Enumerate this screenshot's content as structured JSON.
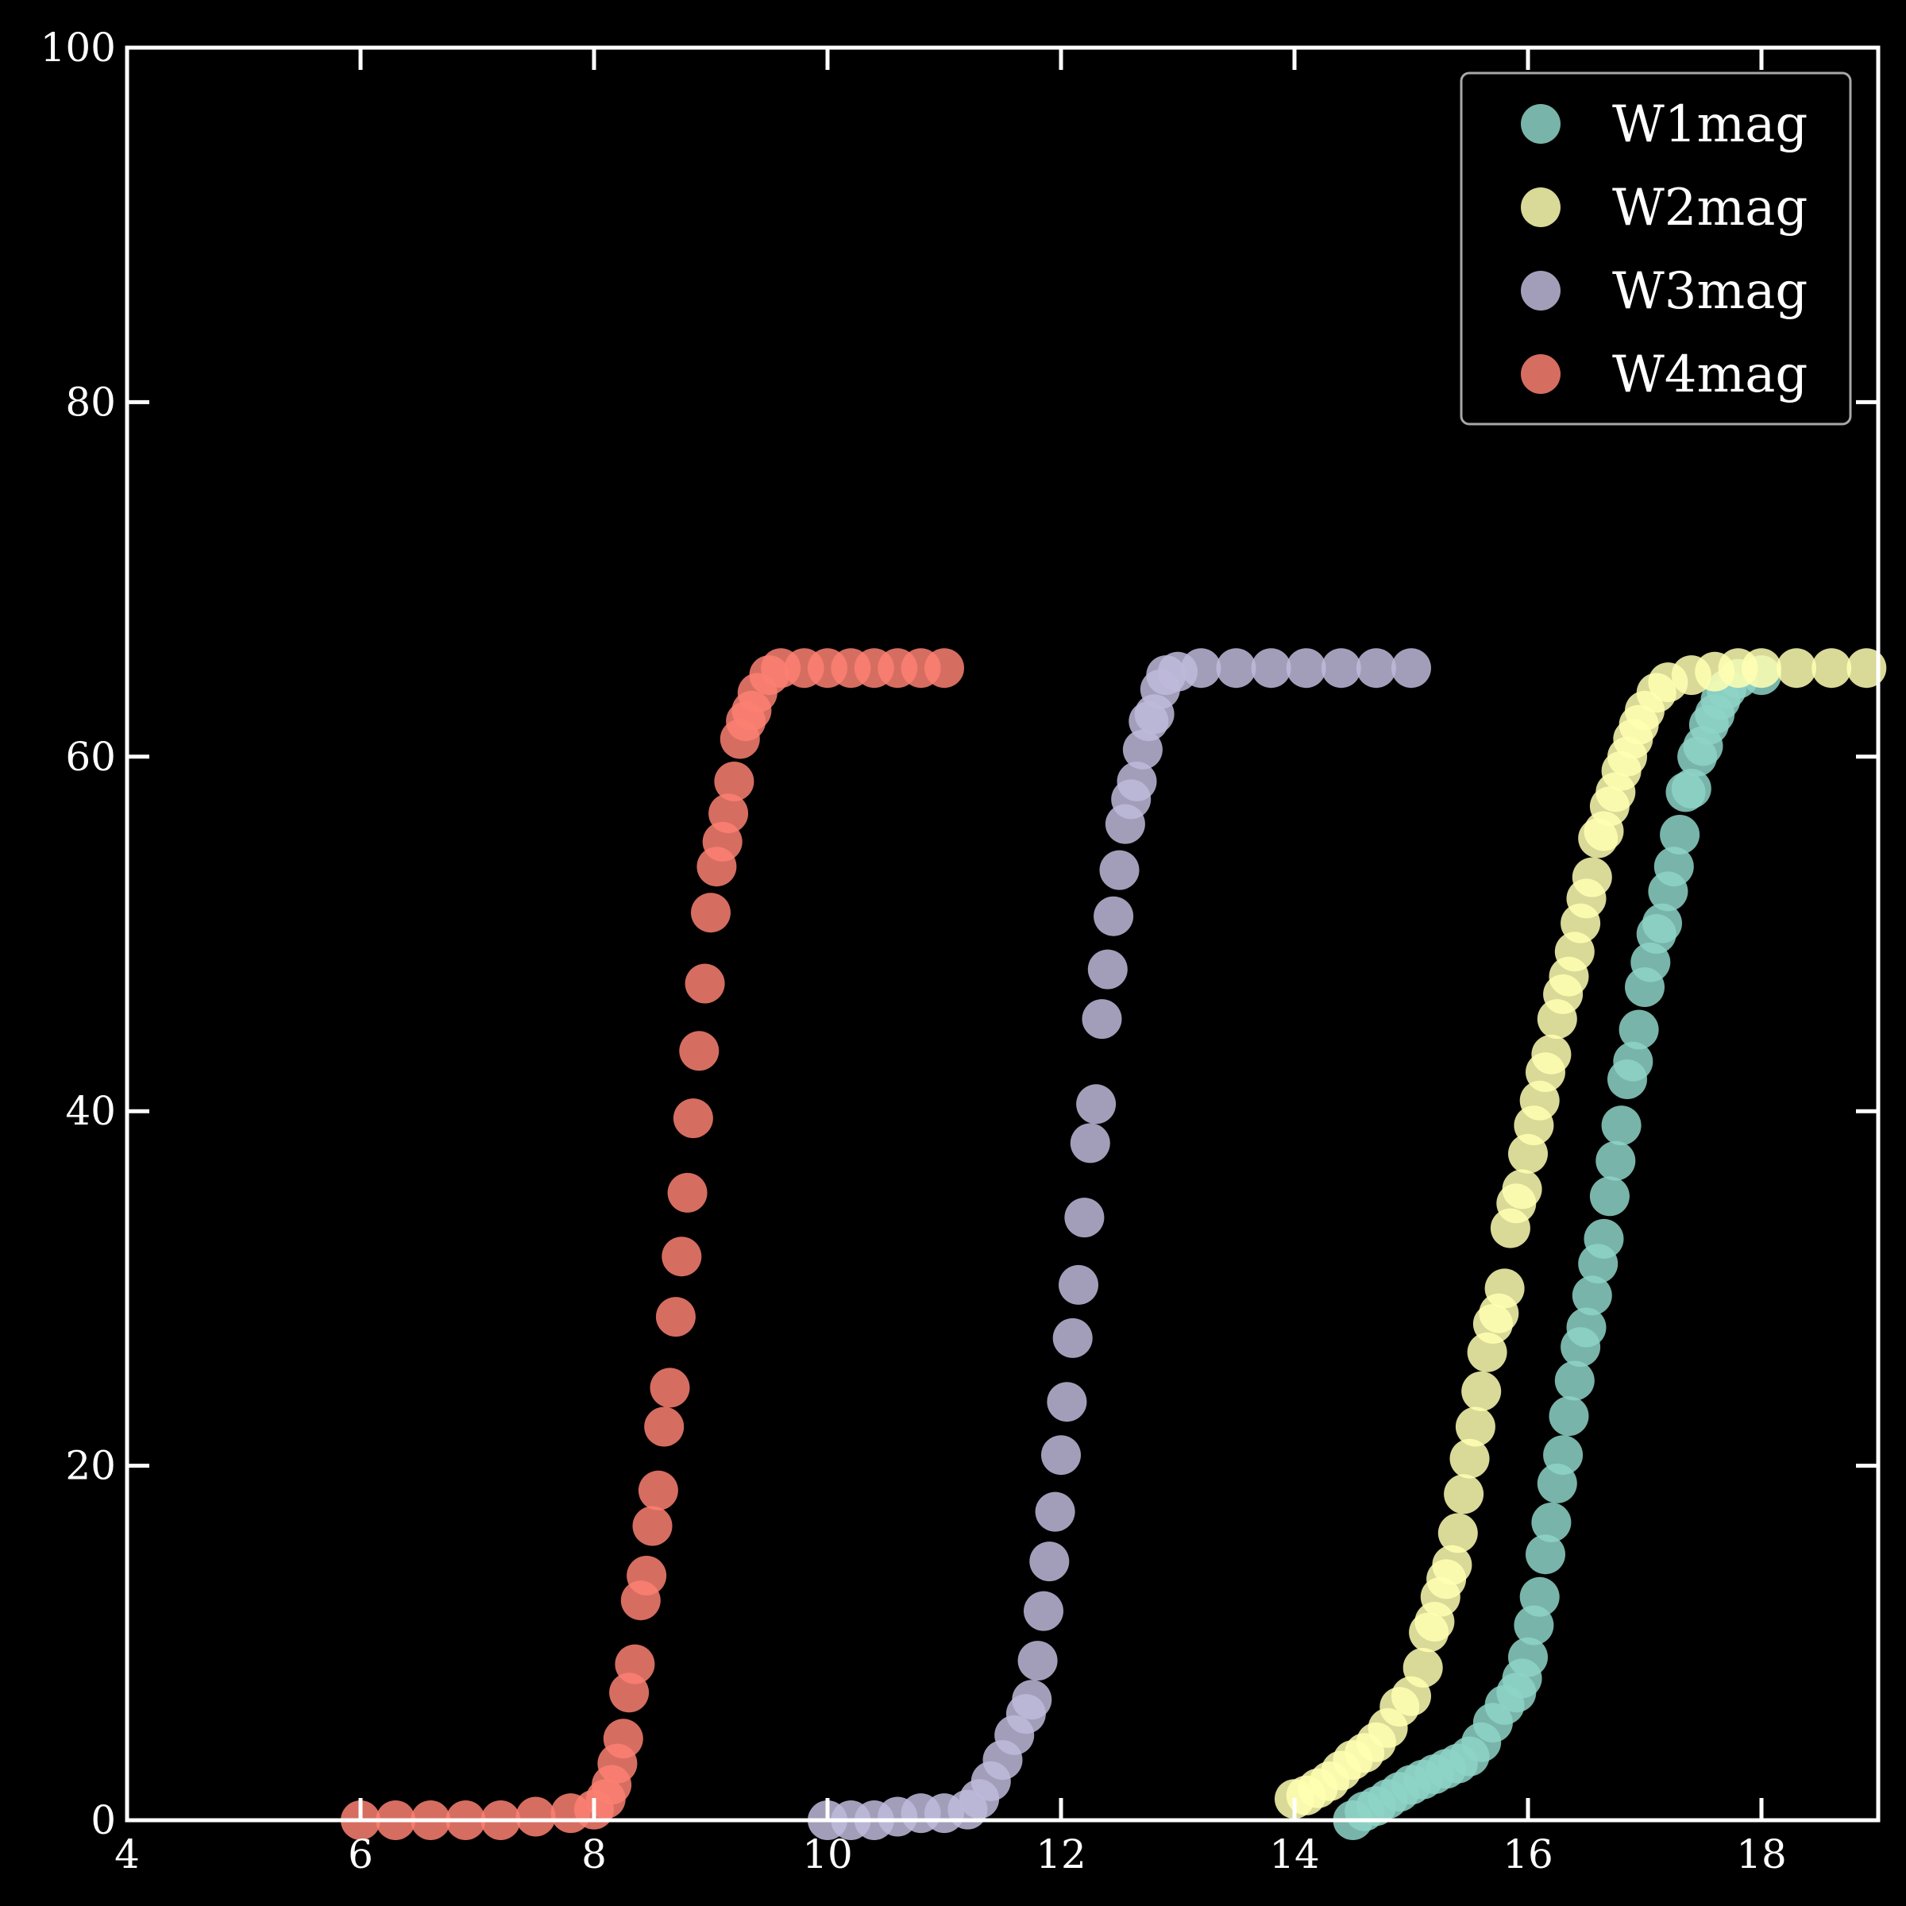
{
  "chart_data": {
    "type": "scatter",
    "title": "",
    "xlabel": "",
    "ylabel": "",
    "xlim": [
      4,
      19
    ],
    "ylim": [
      0,
      100
    ],
    "x_ticks": [
      4,
      6,
      8,
      10,
      12,
      14,
      16,
      18
    ],
    "y_ticks": [
      0,
      20,
      40,
      60,
      80,
      100
    ],
    "grid": false,
    "legend_position": "top-right",
    "background": "#000000",
    "series": [
      {
        "name": "W1mag",
        "color": "#8dd3c7",
        "points": [
          [
            14.5,
            0.0
          ],
          [
            14.6,
            0.5
          ],
          [
            14.7,
            0.8
          ],
          [
            14.8,
            1.2
          ],
          [
            14.9,
            1.6
          ],
          [
            15.0,
            2.0
          ],
          [
            15.1,
            2.3
          ],
          [
            15.2,
            2.6
          ],
          [
            15.3,
            2.9
          ],
          [
            15.4,
            3.2
          ],
          [
            15.5,
            3.6
          ],
          [
            15.6,
            4.4
          ],
          [
            15.7,
            5.5
          ],
          [
            15.8,
            6.5
          ],
          [
            15.9,
            7.2
          ],
          [
            15.95,
            8.0
          ],
          [
            16.0,
            9.2
          ],
          [
            16.05,
            11.0
          ],
          [
            16.1,
            12.6
          ],
          [
            16.15,
            15.0
          ],
          [
            16.2,
            16.8
          ],
          [
            16.25,
            19.0
          ],
          [
            16.3,
            20.6
          ],
          [
            16.35,
            22.8
          ],
          [
            16.4,
            24.8
          ],
          [
            16.45,
            26.7
          ],
          [
            16.5,
            27.8
          ],
          [
            16.55,
            29.6
          ],
          [
            16.6,
            31.4
          ],
          [
            16.65,
            32.8
          ],
          [
            16.7,
            35.2
          ],
          [
            16.75,
            37.2
          ],
          [
            16.8,
            39.2
          ],
          [
            16.85,
            41.8
          ],
          [
            16.9,
            42.8
          ],
          [
            16.95,
            44.6
          ],
          [
            17.0,
            47.0
          ],
          [
            17.05,
            48.4
          ],
          [
            17.1,
            50.0
          ],
          [
            17.15,
            50.6
          ],
          [
            17.2,
            52.4
          ],
          [
            17.25,
            53.8
          ],
          [
            17.3,
            55.6
          ],
          [
            17.35,
            58.0
          ],
          [
            17.4,
            58.2
          ],
          [
            17.45,
            60.0
          ],
          [
            17.5,
            60.6
          ],
          [
            17.55,
            61.8
          ],
          [
            17.6,
            62.4
          ],
          [
            17.65,
            63.2
          ],
          [
            17.7,
            63.8
          ],
          [
            17.8,
            64.4
          ],
          [
            18.0,
            64.6
          ]
        ]
      },
      {
        "name": "W2mag",
        "color": "#ffffb3",
        "points": [
          [
            14.0,
            1.2
          ],
          [
            14.1,
            1.4
          ],
          [
            14.2,
            1.8
          ],
          [
            14.3,
            2.2
          ],
          [
            14.4,
            2.8
          ],
          [
            14.5,
            3.4
          ],
          [
            14.6,
            3.8
          ],
          [
            14.7,
            4.4
          ],
          [
            14.8,
            5.2
          ],
          [
            14.9,
            6.4
          ],
          [
            15.0,
            7.0
          ],
          [
            15.1,
            8.6
          ],
          [
            15.15,
            10.6
          ],
          [
            15.2,
            11.2
          ],
          [
            15.25,
            12.6
          ],
          [
            15.3,
            13.6
          ],
          [
            15.35,
            14.4
          ],
          [
            15.4,
            16.2
          ],
          [
            15.45,
            18.4
          ],
          [
            15.5,
            20.4
          ],
          [
            15.55,
            22.2
          ],
          [
            15.6,
            24.2
          ],
          [
            15.65,
            26.4
          ],
          [
            15.7,
            28.0
          ],
          [
            15.75,
            28.6
          ],
          [
            15.8,
            30.0
          ],
          [
            15.85,
            33.4
          ],
          [
            15.9,
            34.8
          ],
          [
            15.95,
            35.6
          ],
          [
            16.0,
            37.6
          ],
          [
            16.05,
            39.2
          ],
          [
            16.1,
            40.6
          ],
          [
            16.15,
            42.2
          ],
          [
            16.2,
            43.2
          ],
          [
            16.25,
            45.2
          ],
          [
            16.3,
            46.6
          ],
          [
            16.35,
            47.6
          ],
          [
            16.4,
            49.0
          ],
          [
            16.45,
            50.6
          ],
          [
            16.5,
            52.0
          ],
          [
            16.55,
            53.2
          ],
          [
            16.6,
            55.4
          ],
          [
            16.65,
            55.8
          ],
          [
            16.7,
            57.2
          ],
          [
            16.75,
            58.0
          ],
          [
            16.8,
            59.2
          ],
          [
            16.85,
            60.0
          ],
          [
            16.9,
            61.0
          ],
          [
            16.95,
            61.8
          ],
          [
            17.0,
            62.6
          ],
          [
            17.1,
            63.6
          ],
          [
            17.2,
            64.2
          ],
          [
            17.4,
            64.6
          ],
          [
            17.6,
            64.8
          ],
          [
            17.8,
            65.0
          ],
          [
            18.0,
            65.0
          ],
          [
            18.3,
            65.0
          ],
          [
            18.6,
            65.0
          ],
          [
            18.9,
            65.0
          ]
        ]
      },
      {
        "name": "W3mag",
        "color": "#bebada",
        "points": [
          [
            10.0,
            0.0
          ],
          [
            10.2,
            0.0
          ],
          [
            10.4,
            0.0
          ],
          [
            10.6,
            0.2
          ],
          [
            10.8,
            0.4
          ],
          [
            11.0,
            0.4
          ],
          [
            11.2,
            0.6
          ],
          [
            11.3,
            1.2
          ],
          [
            11.4,
            2.2
          ],
          [
            11.5,
            3.4
          ],
          [
            11.6,
            4.8
          ],
          [
            11.7,
            6.0
          ],
          [
            11.75,
            6.8
          ],
          [
            11.8,
            9.0
          ],
          [
            11.85,
            11.8
          ],
          [
            11.9,
            14.6
          ],
          [
            11.95,
            17.4
          ],
          [
            12.0,
            20.6
          ],
          [
            12.05,
            23.6
          ],
          [
            12.1,
            27.2
          ],
          [
            12.15,
            30.2
          ],
          [
            12.2,
            34.0
          ],
          [
            12.25,
            38.2
          ],
          [
            12.3,
            40.4
          ],
          [
            12.35,
            45.2
          ],
          [
            12.4,
            48.0
          ],
          [
            12.45,
            51.0
          ],
          [
            12.5,
            53.6
          ],
          [
            12.55,
            56.2
          ],
          [
            12.6,
            57.6
          ],
          [
            12.65,
            58.6
          ],
          [
            12.7,
            60.4
          ],
          [
            12.75,
            62.0
          ],
          [
            12.8,
            62.4
          ],
          [
            12.85,
            63.8
          ],
          [
            12.9,
            64.6
          ],
          [
            13.0,
            64.8
          ],
          [
            13.2,
            65.0
          ],
          [
            13.5,
            65.0
          ],
          [
            13.8,
            65.0
          ],
          [
            14.1,
            65.0
          ],
          [
            14.4,
            65.0
          ],
          [
            14.7,
            65.0
          ],
          [
            15.0,
            65.0
          ]
        ]
      },
      {
        "name": "W4mag",
        "color": "#fb8072",
        "points": [
          [
            6.0,
            0.0
          ],
          [
            6.3,
            0.0
          ],
          [
            6.6,
            0.0
          ],
          [
            6.9,
            0.0
          ],
          [
            7.2,
            0.0
          ],
          [
            7.5,
            0.2
          ],
          [
            7.8,
            0.4
          ],
          [
            8.0,
            0.6
          ],
          [
            8.1,
            1.2
          ],
          [
            8.15,
            2.0
          ],
          [
            8.2,
            3.2
          ],
          [
            8.25,
            4.6
          ],
          [
            8.3,
            7.2
          ],
          [
            8.35,
            8.8
          ],
          [
            8.4,
            12.4
          ],
          [
            8.45,
            13.8
          ],
          [
            8.5,
            16.6
          ],
          [
            8.55,
            18.6
          ],
          [
            8.6,
            22.2
          ],
          [
            8.65,
            24.4
          ],
          [
            8.7,
            28.4
          ],
          [
            8.75,
            31.8
          ],
          [
            8.8,
            35.4
          ],
          [
            8.85,
            39.6
          ],
          [
            8.9,
            43.4
          ],
          [
            8.95,
            47.2
          ],
          [
            9.0,
            51.2
          ],
          [
            9.05,
            53.8
          ],
          [
            9.1,
            55.2
          ],
          [
            9.15,
            56.8
          ],
          [
            9.2,
            58.6
          ],
          [
            9.25,
            61.0
          ],
          [
            9.3,
            62.0
          ],
          [
            9.35,
            62.6
          ],
          [
            9.4,
            63.6
          ],
          [
            9.5,
            64.6
          ],
          [
            9.6,
            65.0
          ],
          [
            9.8,
            65.0
          ],
          [
            10.0,
            65.0
          ],
          [
            10.2,
            65.0
          ],
          [
            10.4,
            65.0
          ],
          [
            10.6,
            65.0
          ],
          [
            10.8,
            65.0
          ],
          [
            11.0,
            65.0
          ]
        ]
      }
    ]
  }
}
